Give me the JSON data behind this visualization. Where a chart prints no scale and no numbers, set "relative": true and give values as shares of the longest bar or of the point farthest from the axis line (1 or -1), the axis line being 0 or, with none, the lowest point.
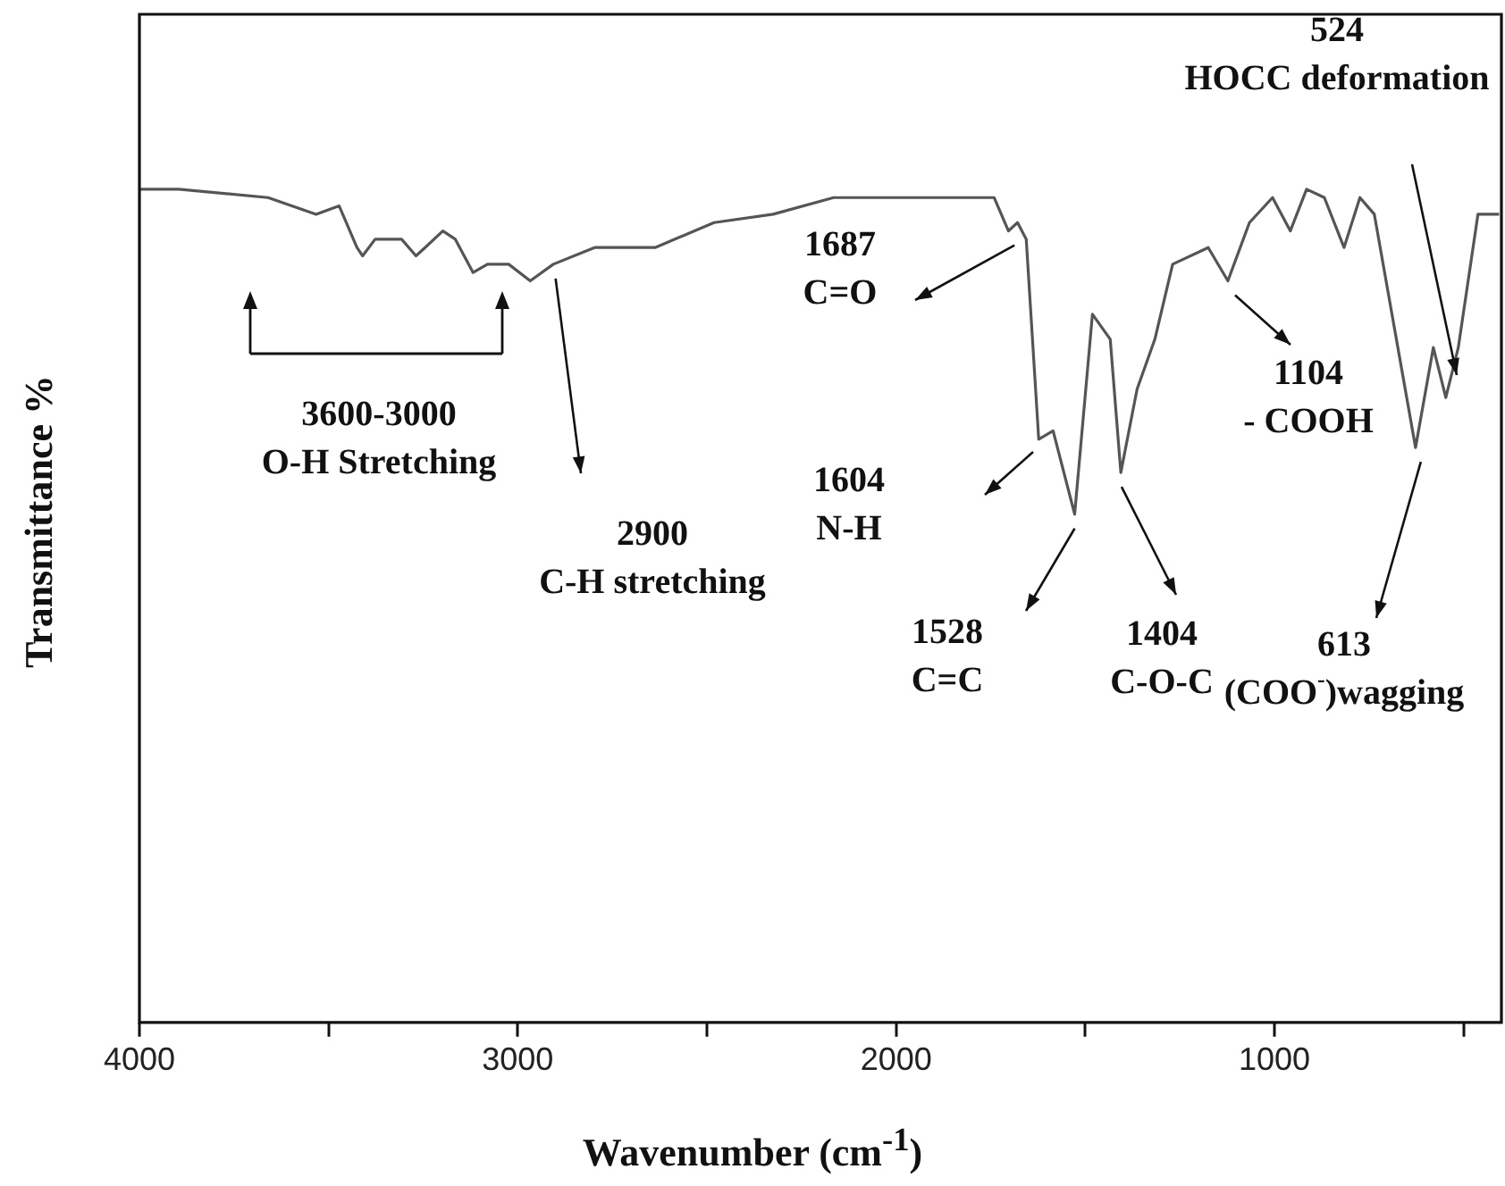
{
  "chart_data": {
    "type": "line",
    "relative": true,
    "xlabel": "Wavenumber (cm$^{-1}$)",
    "ylabel": "Transmittance %",
    "color": "#555555",
    "x": [
      4000,
      3896,
      3660,
      3533,
      3472,
      3425,
      3410,
      3377,
      3340,
      3307,
      3269,
      3245,
      3198,
      3165,
      3118,
      3080,
      3024,
      2967,
      2906,
      2797,
      2637,
      2481,
      2325,
      2165,
      2104,
      1962,
      1741,
      1703,
      1679,
      1656,
      1623,
      1585,
      1528,
      1481,
      1434,
      1406,
      1363,
      1316,
      1269,
      1175,
      1123,
      1066,
      1005,
      958,
      915,
      868,
      816,
      774,
      736,
      627,
      580,
      547,
      514,
      462,
      406
    ],
    "values": [
      1.0,
      1.0,
      0.99,
      0.97,
      0.98,
      0.93,
      0.92,
      0.94,
      0.94,
      0.94,
      0.92,
      0.93,
      0.95,
      0.94,
      0.9,
      0.91,
      0.91,
      0.89,
      0.91,
      0.93,
      0.93,
      0.96,
      0.97,
      0.99,
      0.99,
      0.99,
      0.99,
      0.95,
      0.96,
      0.94,
      0.7,
      0.71,
      0.61,
      0.85,
      0.82,
      0.66,
      0.76,
      0.82,
      0.91,
      0.93,
      0.89,
      0.96,
      0.99,
      0.95,
      1.0,
      0.99,
      0.93,
      0.99,
      0.97,
      0.69,
      0.81,
      0.75,
      0.81,
      0.97,
      0.97
    ],
    "xlim": [
      4000,
      400
    ],
    "xticks": [
      4000,
      {
        "value": 3500,
        "label": null
      },
      3000,
      {
        "value": 2500,
        "label": null
      },
      2000,
      {
        "value": 1500,
        "label": null
      },
      1000,
      {
        "value": 500,
        "label": null
      }
    ],
    "grid": false,
    "legend": false,
    "marker": "none",
    "line_style": "solid",
    "annotations": [
      "524\nHOCC deformation",
      {
        "text": "1687\nC=O",
        "x": 1687,
        "y": 0.95
      },
      "3600-3000\nO-H Stretching",
      {
        "text": "2900\nC-H stretching",
        "x": 2900,
        "y": 0.91
      },
      "1604\nN-H",
      {
        "text": "1528\nC=C",
        "x": 1528,
        "y": 0.61
      },
      {
        "text": "1404\nC-O-C",
        "x": 1404,
        "y": 0.66
      },
      {
        "text": "1104\n- COOH",
        "x": 1104,
        "y": 0.89
      },
      {
        "text": "613\n(COO$^{-}$)wagging",
        "x": 613,
        "y": 0.69
      }
    ]
  }
}
